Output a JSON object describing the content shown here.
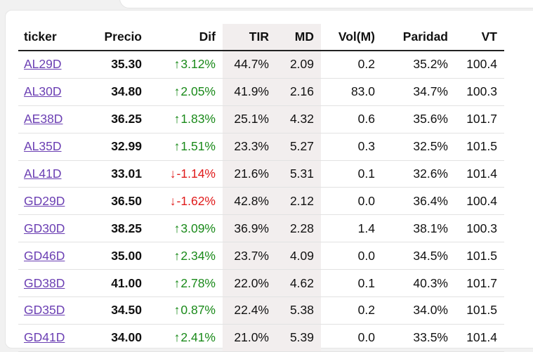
{
  "columns": {
    "ticker": "ticker",
    "precio": "Precio",
    "dif": "Dif",
    "tir": "TIR",
    "md": "MD",
    "vol": "Vol(M)",
    "paridad": "Paridad",
    "vt": "VT"
  },
  "rows": [
    {
      "ticker": "AL29D",
      "precio": "35.30",
      "dif_arrow": "↑",
      "dif": "3.12%",
      "tir": "44.7%",
      "md": "2.09",
      "vol": "0.2",
      "paridad": "35.2%",
      "vt": "100.4"
    },
    {
      "ticker": "AL30D",
      "precio": "34.80",
      "dif_arrow": "↑",
      "dif": "2.05%",
      "tir": "41.9%",
      "md": "2.16",
      "vol": "83.0",
      "paridad": "34.7%",
      "vt": "100.3"
    },
    {
      "ticker": "AE38D",
      "precio": "36.25",
      "dif_arrow": "↑",
      "dif": "1.83%",
      "tir": "25.1%",
      "md": "4.32",
      "vol": "0.6",
      "paridad": "35.6%",
      "vt": "101.7"
    },
    {
      "ticker": "AL35D",
      "precio": "32.99",
      "dif_arrow": "↑",
      "dif": "1.51%",
      "tir": "23.3%",
      "md": "5.27",
      "vol": "0.3",
      "paridad": "32.5%",
      "vt": "101.5"
    },
    {
      "ticker": "AL41D",
      "precio": "33.01",
      "dif_arrow": "↓",
      "dif": "-1.14%",
      "tir": "21.6%",
      "md": "5.31",
      "vol": "0.1",
      "paridad": "32.6%",
      "vt": "101.4"
    },
    {
      "ticker": "GD29D",
      "precio": "36.50",
      "dif_arrow": "↓",
      "dif": "-1.62%",
      "tir": "42.8%",
      "md": "2.12",
      "vol": "0.0",
      "paridad": "36.4%",
      "vt": "100.4"
    },
    {
      "ticker": "GD30D",
      "precio": "38.25",
      "dif_arrow": "↑",
      "dif": "3.09%",
      "tir": "36.9%",
      "md": "2.28",
      "vol": "1.4",
      "paridad": "38.1%",
      "vt": "100.3"
    },
    {
      "ticker": "GD46D",
      "precio": "35.00",
      "dif_arrow": "↑",
      "dif": "2.34%",
      "tir": "23.7%",
      "md": "4.09",
      "vol": "0.0",
      "paridad": "34.5%",
      "vt": "101.5"
    },
    {
      "ticker": "GD38D",
      "precio": "41.00",
      "dif_arrow": "↑",
      "dif": "2.78%",
      "tir": "22.0%",
      "md": "4.62",
      "vol": "0.1",
      "paridad": "40.3%",
      "vt": "101.7"
    },
    {
      "ticker": "GD35D",
      "precio": "34.50",
      "dif_arrow": "↑",
      "dif": "0.87%",
      "tir": "22.4%",
      "md": "5.38",
      "vol": "0.2",
      "paridad": "34.0%",
      "vt": "101.5"
    },
    {
      "ticker": "GD41D",
      "precio": "34.00",
      "dif_arrow": "↑",
      "dif": "2.41%",
      "tir": "21.0%",
      "md": "5.39",
      "vol": "0.0",
      "paridad": "33.5%",
      "vt": "101.4"
    }
  ],
  "colors": {
    "up": "#1a8a1a",
    "down": "#e01b1b",
    "link": "#6b3fb3",
    "shaded_column": "#f2eeee"
  }
}
